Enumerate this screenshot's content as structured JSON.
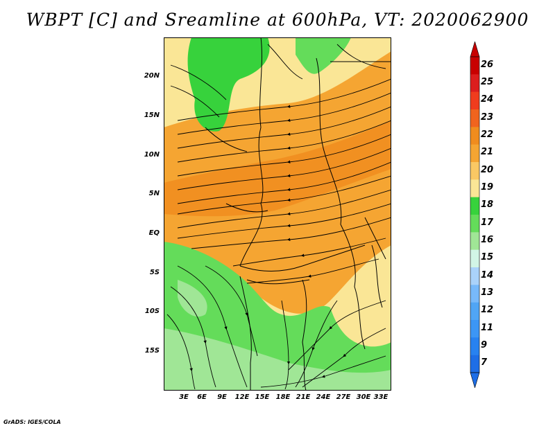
{
  "title": "WBPT [C] and Sreamline at 600hPa, VT: 2020062900",
  "credit": "GrADS: IGES/COLA",
  "map": {
    "lat_labels": [
      "20N",
      "15N",
      "10N",
      "5N",
      "EQ",
      "5S",
      "10S",
      "15S"
    ],
    "lon_labels": [
      "3E",
      "6E",
      "9E",
      "12E",
      "15E",
      "18E",
      "21E",
      "24E",
      "27E",
      "30E",
      "33E"
    ]
  },
  "colorbar": {
    "labels": [
      "26",
      "25",
      "24",
      "23",
      "22",
      "21",
      "20",
      "19",
      "18",
      "17",
      "16",
      "15",
      "14",
      "13",
      "12",
      "11",
      "9",
      "7"
    ],
    "colors": [
      "#c80000",
      "#dc1e1e",
      "#f03c1e",
      "#f0641e",
      "#f08c1e",
      "#f5a532",
      "#fac864",
      "#fae696",
      "#37d23c",
      "#64dc5a",
      "#a0e696",
      "#d2f5e6",
      "#aad2fa",
      "#78b9fa",
      "#50a5f5",
      "#3c96f5",
      "#2882f0",
      "#1e6ee6"
    ]
  }
}
